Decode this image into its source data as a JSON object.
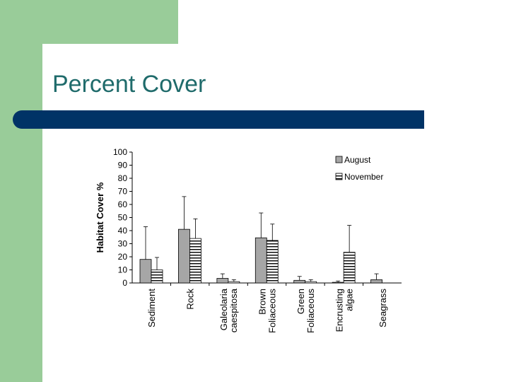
{
  "slide": {
    "title": "Percent Cover",
    "colors": {
      "green": "#99cc99",
      "navy": "#003366",
      "title": "#1f6b6b"
    }
  },
  "chart_data": {
    "type": "bar",
    "ylabel": "Habitat Cover %",
    "xlabel": "",
    "ylim": [
      0,
      100
    ],
    "yticks": [
      0,
      10,
      20,
      30,
      40,
      50,
      60,
      70,
      80,
      90,
      100
    ],
    "categories": [
      [
        "Sediment"
      ],
      [
        "Rock"
      ],
      [
        "Galeolaria",
        "caespitosa"
      ],
      [
        "Brown",
        "Foliaceous"
      ],
      [
        "Green",
        "Foliaceous"
      ],
      [
        "Encrusting",
        "algae"
      ],
      [
        "Seagrass"
      ]
    ],
    "series": [
      {
        "name": "August",
        "values": [
          18,
          41,
          3.5,
          34.5,
          2,
          0.5,
          2.5
        ],
        "errors": [
          25,
          25,
          3.5,
          19,
          3,
          1,
          4.5
        ],
        "style": "solid-grey"
      },
      {
        "name": "November",
        "values": [
          10,
          34,
          1,
          32.5,
          1,
          23.5,
          0
        ],
        "errors": [
          9.5,
          15,
          1.5,
          12.5,
          1.5,
          20.5,
          0
        ],
        "style": "horizontal-stripes"
      }
    ],
    "legend_position": "top-right",
    "grid": false
  }
}
